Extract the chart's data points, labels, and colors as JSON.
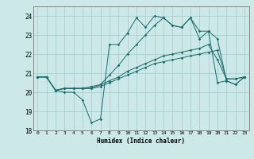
{
  "title": "",
  "xlabel": "Humidex (Indice chaleur)",
  "bg_color": "#cce8e8",
  "line_color": "#1a6b6b",
  "grid_color": "#aacfcf",
  "xlim": [
    -0.5,
    23.5
  ],
  "ylim": [
    18.0,
    24.5
  ],
  "yticks": [
    18,
    19,
    20,
    21,
    22,
    23,
    24
  ],
  "xticks": [
    0,
    1,
    2,
    3,
    4,
    5,
    6,
    7,
    8,
    9,
    10,
    11,
    12,
    13,
    14,
    15,
    16,
    17,
    18,
    19,
    20,
    21,
    22,
    23
  ],
  "line1_y": [
    20.8,
    20.8,
    20.1,
    20.0,
    20.0,
    19.6,
    18.4,
    18.6,
    22.5,
    22.5,
    23.1,
    23.9,
    23.4,
    24.0,
    23.9,
    23.5,
    23.4,
    23.9,
    22.8,
    23.2,
    20.5,
    20.6,
    20.4,
    20.8
  ],
  "line2_y": [
    20.8,
    20.8,
    20.1,
    20.2,
    20.2,
    20.2,
    20.2,
    20.3,
    20.5,
    20.7,
    20.9,
    21.1,
    21.3,
    21.5,
    21.6,
    21.7,
    21.8,
    21.9,
    22.0,
    22.1,
    22.2,
    20.7,
    20.7,
    20.8
  ],
  "line3_y": [
    20.8,
    20.8,
    20.1,
    20.2,
    20.2,
    20.2,
    20.3,
    20.4,
    20.6,
    20.8,
    21.1,
    21.3,
    21.5,
    21.7,
    21.9,
    22.0,
    22.1,
    22.2,
    22.3,
    22.5,
    21.7,
    20.7,
    20.7,
    20.8
  ],
  "line4_y": [
    20.8,
    20.8,
    20.1,
    20.2,
    20.2,
    20.2,
    20.2,
    20.4,
    20.9,
    21.4,
    22.0,
    22.5,
    23.0,
    23.5,
    23.9,
    23.5,
    23.4,
    23.9,
    23.2,
    23.2,
    22.8,
    20.6,
    20.4,
    20.8
  ]
}
